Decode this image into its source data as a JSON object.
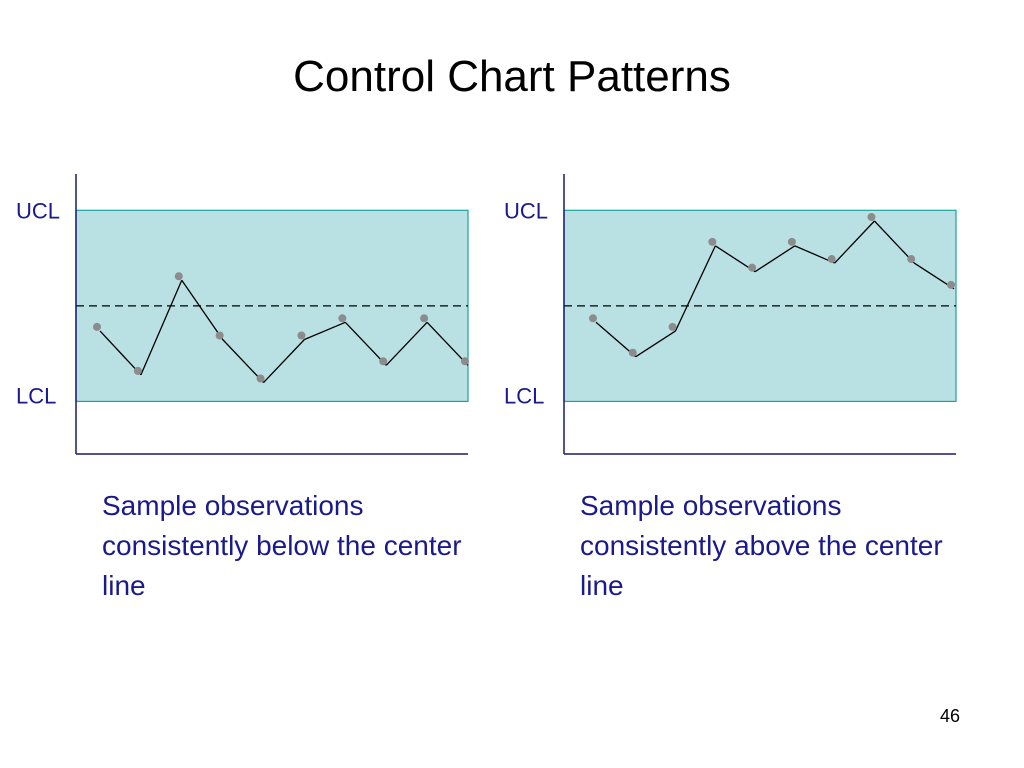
{
  "slide": {
    "title": "Control Chart Patterns",
    "page_number": "46"
  },
  "colors": {
    "band_fill": "#b9e0e3",
    "band_stroke": "#1aa59b",
    "axis": "#1a1a6e",
    "point": "#8c8c8c",
    "line": "#000000",
    "text_blue": "#1a1a8c"
  },
  "chart_data": [
    {
      "type": "line",
      "title": "",
      "limit_labels": {
        "upper": "UCL",
        "lower": "LCL"
      },
      "ucl": 1,
      "lcl": -1,
      "center": 0,
      "ylim": [
        -1.55,
        1.38
      ],
      "x": [
        1,
        2,
        3,
        4,
        5,
        6,
        7,
        8,
        9,
        10
      ],
      "series": [
        {
          "values": [
            -0.22,
            -0.68,
            0.31,
            -0.31,
            -0.76,
            -0.31,
            -0.13,
            -0.58,
            -0.13,
            -0.58
          ]
        }
      ],
      "caption": "Sample observations consistently below the center line",
      "grid": false
    },
    {
      "type": "line",
      "title": "",
      "limit_labels": {
        "upper": "UCL",
        "lower": "LCL"
      },
      "ucl": 1,
      "lcl": -1,
      "center": 0,
      "ylim": [
        -1.55,
        1.38
      ],
      "x": [
        1,
        2,
        3,
        4,
        5,
        6,
        7,
        8,
        9,
        10
      ],
      "series": [
        {
          "values": [
            -0.13,
            -0.49,
            -0.22,
            0.67,
            0.4,
            0.67,
            0.49,
            0.93,
            0.49,
            0.22
          ]
        }
      ],
      "caption": "Sample observations consistently above the center line",
      "grid": false
    }
  ]
}
